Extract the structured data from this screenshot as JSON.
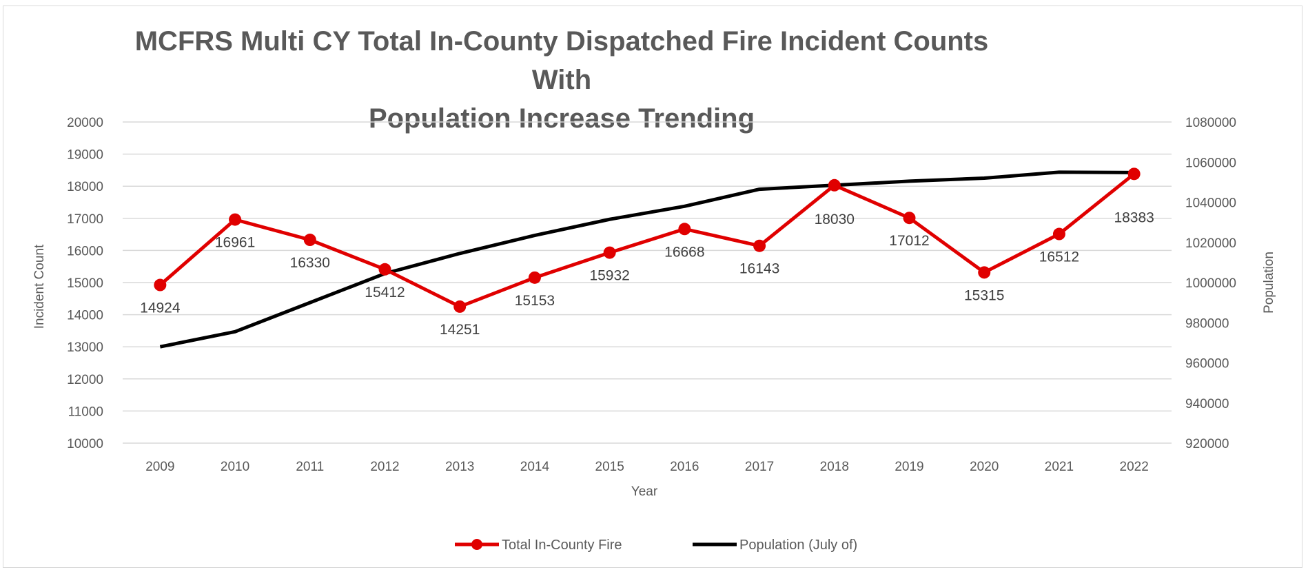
{
  "chart_data": {
    "type": "line",
    "title": "MCFRS Multi CY Total In-County Dispatched Fire Incident Counts With Population Increase Trending",
    "title_lines": [
      "MCFRS Multi CY Total In-County Dispatched Fire Incident Counts With",
      "Population Increase Trending"
    ],
    "xlabel": "Year",
    "ylabel": "Incident Count",
    "y2label": "Population",
    "categories": [
      "2009",
      "2010",
      "2011",
      "2012",
      "2013",
      "2014",
      "2015",
      "2016",
      "2017",
      "2018",
      "2019",
      "2020",
      "2021",
      "2022"
    ],
    "ylim": [
      10000,
      20000
    ],
    "y_ticks": [
      10000,
      11000,
      12000,
      13000,
      14000,
      15000,
      16000,
      17000,
      18000,
      19000,
      20000
    ],
    "y2lim": [
      920000,
      1080000
    ],
    "y2_ticks": [
      920000,
      940000,
      960000,
      980000,
      1000000,
      1020000,
      1040000,
      1060000,
      1080000
    ],
    "grid": true,
    "legend_position": "bottom",
    "series": [
      {
        "name": "Total In-County Fire",
        "axis": "left",
        "color": "#e00000",
        "marker": "circle",
        "values": [
          14924,
          16961,
          16330,
          15412,
          14251,
          15153,
          15932,
          16668,
          16143,
          18030,
          17012,
          15315,
          16512,
          18383
        ],
        "data_labels": [
          "14924",
          "16961",
          "16330",
          "15412",
          "14251",
          "15153",
          "15932",
          "16668",
          "16143",
          "18030",
          "17012",
          "15315",
          "16512",
          "18383"
        ]
      },
      {
        "name": "Population (July of)",
        "axis": "right",
        "color": "#000000",
        "marker": "none",
        "values": [
          968000,
          975500,
          990000,
          1004500,
          1014500,
          1023500,
          1031500,
          1038000,
          1046500,
          1048500,
          1050500,
          1052000,
          1055000,
          1054800
        ]
      }
    ]
  }
}
